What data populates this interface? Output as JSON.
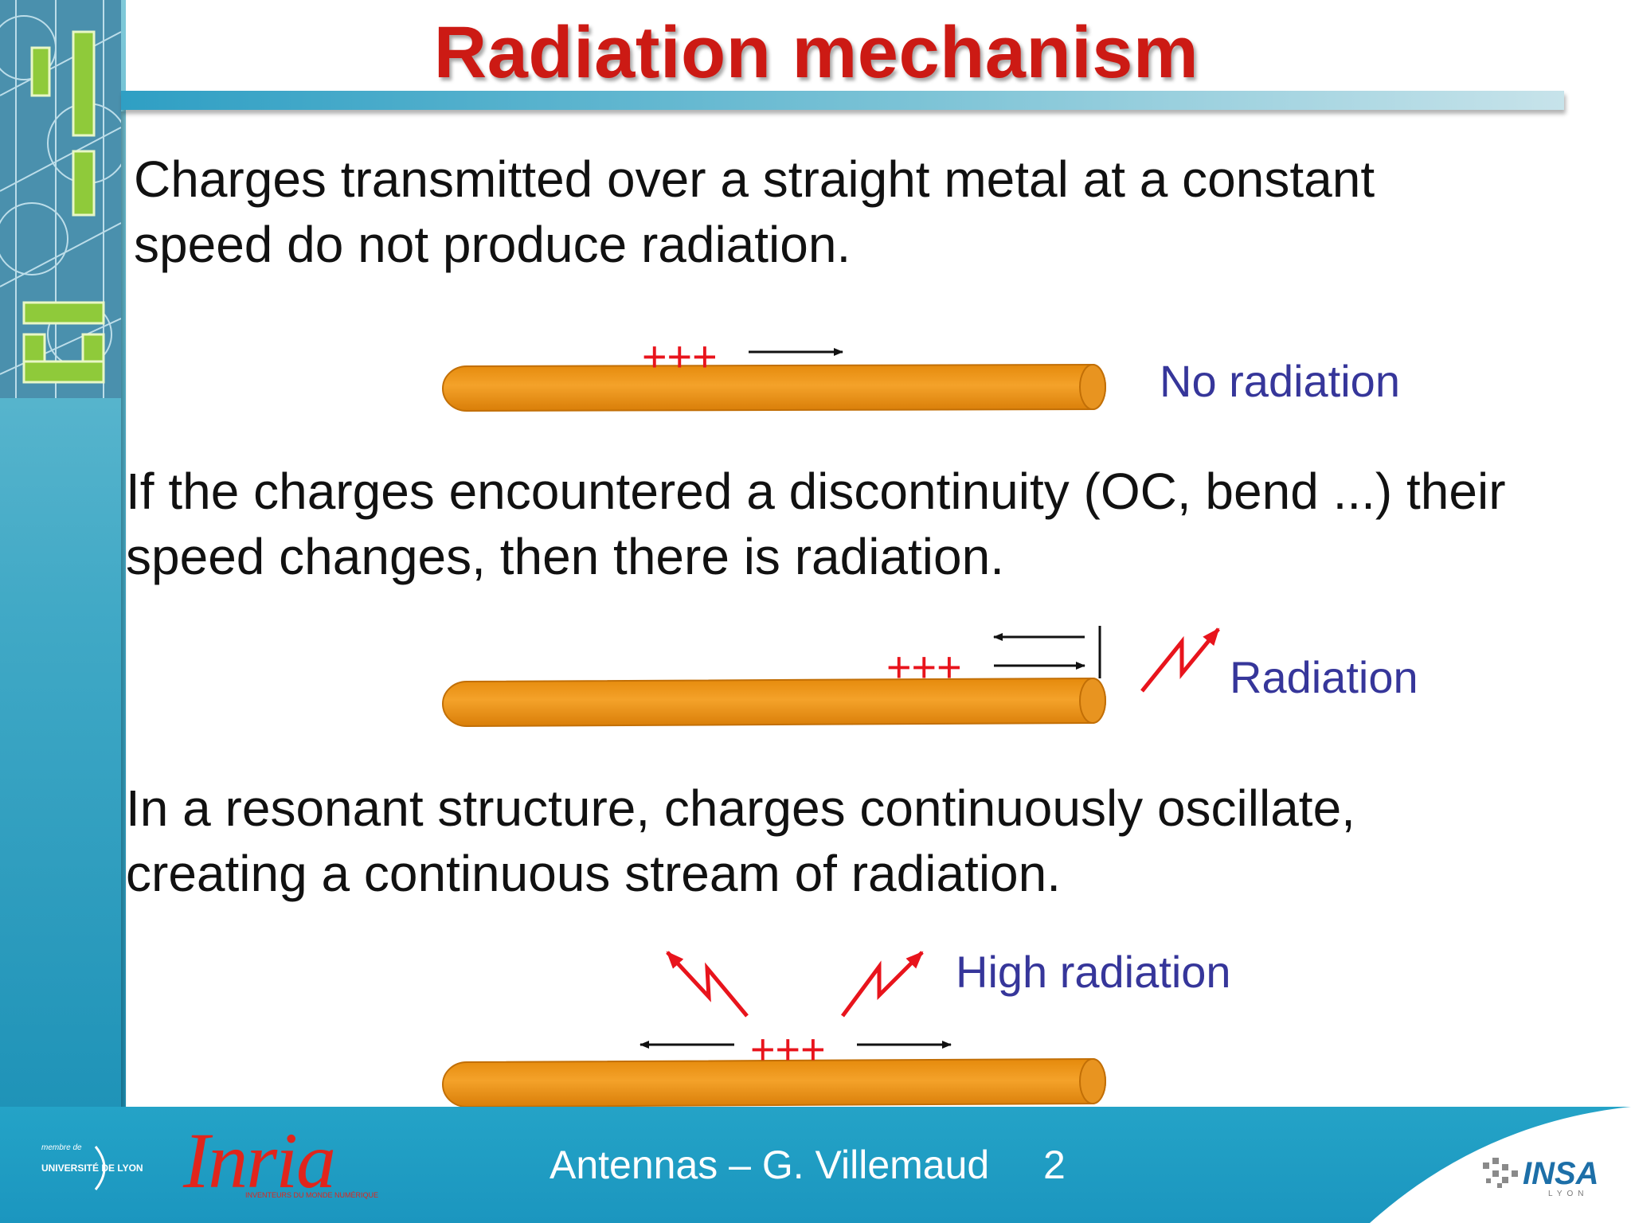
{
  "slide": {
    "title": "Radiation mechanism",
    "paragraphs": {
      "p1_line1": "Charges transmitted over a straight metal at a constant",
      "p1_line2": "speed do not produce radiation.",
      "p2_line1": "If the charges encountered a discontinuity (OC, bend ...) their",
      "p2_line2": "speed changes, then there is radiation.",
      "p3_line1": "In a resonant structure, charges continuously oscillate,",
      "p3_line2": "creating a continuous stream of radiation."
    },
    "diagrams": {
      "charge_symbol": "+++",
      "label_no_radiation": "No radiation",
      "label_radiation": "Radiation",
      "label_high_radiation": "High radiation"
    },
    "colors": {
      "title_red": "#cc1a14",
      "wire_orange": "#f0990f",
      "charge_red": "#e8141c",
      "label_blue": "#36369a",
      "accent_teal": "#1f9cc4"
    }
  },
  "footer": {
    "author": "Antennas – G. Villemaud",
    "page_number": "2",
    "univ_top": "membre de",
    "univ_name": "UNIVERSITÉ DE LYON",
    "inria_word": "Inria",
    "inria_tagline": "INVENTEURS DU MONDE NUMÉRIQUE",
    "insa_word": "INSA",
    "insa_sub": "LYON"
  }
}
